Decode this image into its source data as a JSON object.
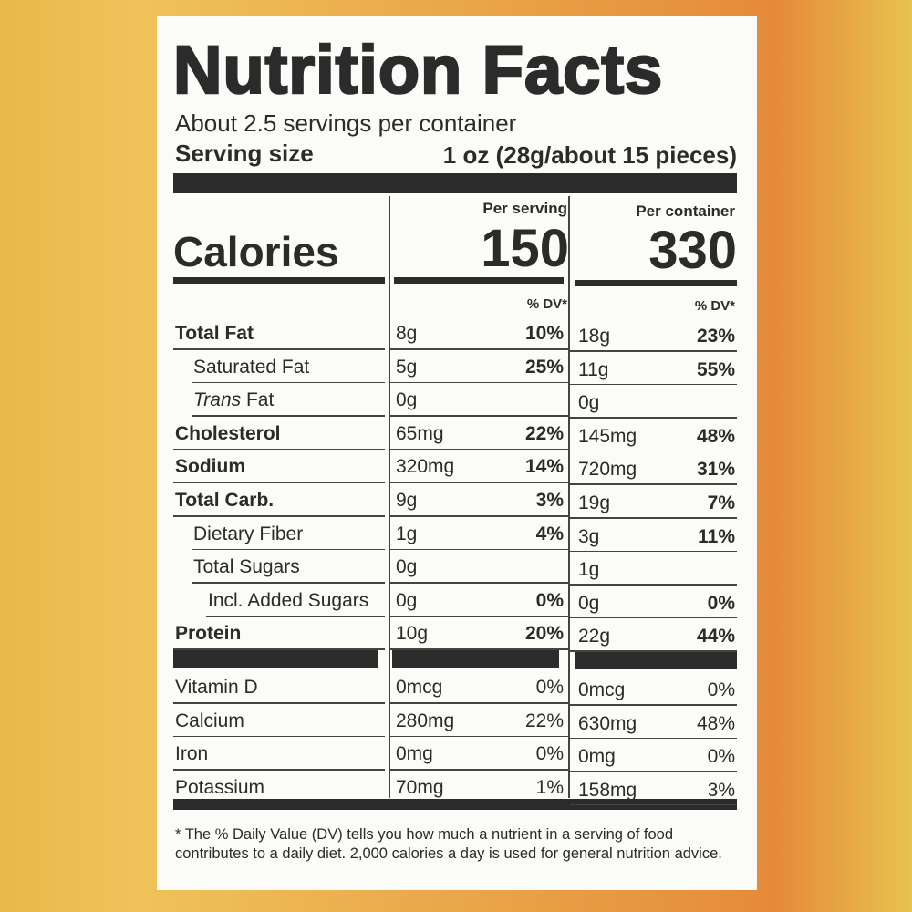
{
  "title": "Nutrition Facts",
  "servings": "About 2.5 servings per container",
  "serving_size": {
    "label": "Serving size",
    "value": "1 oz (28g/about 15 pieces)"
  },
  "headers": {
    "per_serving": "Per serving",
    "per_container": "Per container",
    "dv": "% DV*"
  },
  "calories": {
    "label": "Calories",
    "per_serving": "150",
    "per_container": "330"
  },
  "nutrients": [
    {
      "name": "Total Fat",
      "bold": true,
      "indent": 0,
      "serving": "8g",
      "serving_dv": "10%",
      "container": "18g",
      "container_dv": "23%"
    },
    {
      "name": "Saturated Fat",
      "bold": false,
      "indent": 1,
      "serving": "5g",
      "serving_dv": "25%",
      "container": "11g",
      "container_dv": "55%"
    },
    {
      "italic_prefix": "Trans",
      "name": "Fat",
      "bold": false,
      "indent": 1,
      "serving": "0g",
      "container": "0g"
    },
    {
      "name": "Cholesterol",
      "bold": true,
      "indent": 0,
      "serving": "65mg",
      "serving_dv": "22%",
      "container": "145mg",
      "container_dv": "48%"
    },
    {
      "name": "Sodium",
      "bold": true,
      "indent": 0,
      "serving": "320mg",
      "serving_dv": "14%",
      "container": "720mg",
      "container_dv": "31%"
    },
    {
      "name": "Total Carb.",
      "bold": true,
      "indent": 0,
      "serving": "9g",
      "serving_dv": "3%",
      "container": "19g",
      "container_dv": "7%"
    },
    {
      "name": "Dietary Fiber",
      "bold": false,
      "indent": 1,
      "serving": "1g",
      "serving_dv": "4%",
      "container": "3g",
      "container_dv": "11%"
    },
    {
      "name": "Total Sugars",
      "bold": false,
      "indent": 1,
      "serving": "0g",
      "container": "1g"
    },
    {
      "name": "Incl. Added Sugars",
      "bold": false,
      "indent": 2,
      "serving": "0g",
      "serving_dv": "0%",
      "container": "0g",
      "container_dv": "0%"
    },
    {
      "name": "Protein",
      "bold": true,
      "indent": 0,
      "serving": "10g",
      "serving_dv": "20%",
      "container": "22g",
      "container_dv": "44%"
    }
  ],
  "vitamins": [
    {
      "name": "Vitamin D",
      "serving": "0mcg",
      "serving_dv": "0%",
      "container": "0mcg",
      "container_dv": "0%"
    },
    {
      "name": "Calcium",
      "serving": "280mg",
      "serving_dv": "22%",
      "container": "630mg",
      "container_dv": "48%"
    },
    {
      "name": "Iron",
      "serving": "0mg",
      "serving_dv": "0%",
      "container": "0mg",
      "container_dv": "0%"
    },
    {
      "name": "Potassium",
      "serving": "70mg",
      "serving_dv": "1%",
      "container": "158mg",
      "container_dv": "3%"
    }
  ],
  "footnote": "* The % Daily Value (DV) tells you how much a nutrient in a serving of food contributes to a daily diet. 2,000 calories a day is used for general nutrition advice."
}
